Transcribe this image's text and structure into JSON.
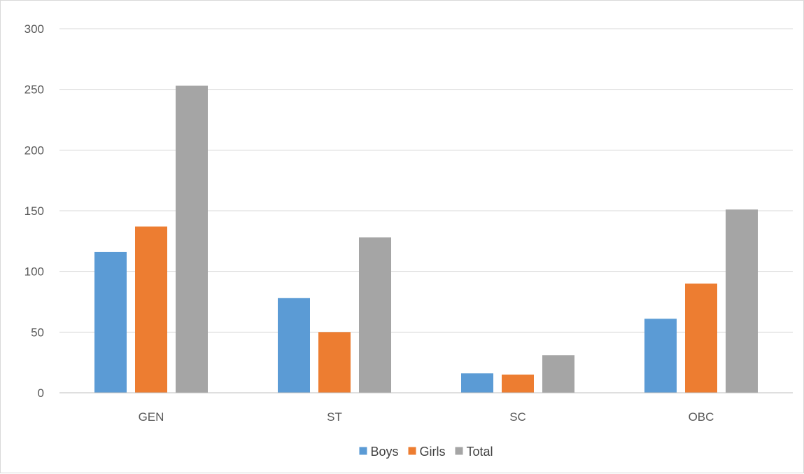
{
  "chart_data": {
    "type": "bar",
    "categories": [
      "GEN",
      "ST",
      "SC",
      "OBC"
    ],
    "series": [
      {
        "name": "Boys",
        "color": "#5b9bd5",
        "values": [
          116,
          78,
          16,
          61
        ]
      },
      {
        "name": "Girls",
        "color": "#ed7d31",
        "values": [
          137,
          50,
          15,
          90
        ]
      },
      {
        "name": "Total",
        "color": "#a5a5a5",
        "values": [
          253,
          128,
          31,
          151
        ]
      }
    ],
    "title": "",
    "xlabel": "",
    "ylabel": "",
    "ylim": [
      0,
      300
    ],
    "yticks": [
      "0",
      "50",
      "100",
      "150",
      "200",
      "250",
      "300"
    ],
    "grid": true,
    "legend_position": "bottom",
    "gridline_color": "#d9d9d9",
    "axis_line_color": "#bfbfbf"
  }
}
